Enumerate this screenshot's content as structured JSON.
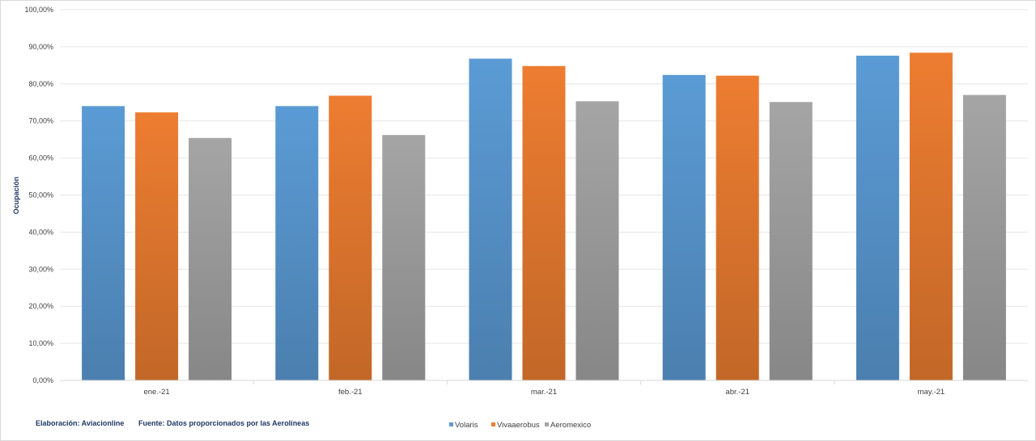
{
  "chart_data": {
    "type": "bar",
    "categories": [
      "ene.-21",
      "feb.-21",
      "mar.-21",
      "abr.-21",
      "may.-21"
    ],
    "series": [
      {
        "name": "Volaris",
        "color": "#5b9bd5",
        "values": [
          74.0,
          74.0,
          86.8,
          82.4,
          87.6
        ]
      },
      {
        "name": "Vivaaerobus",
        "color": "#ed7d31",
        "values": [
          72.3,
          76.8,
          84.8,
          82.2,
          88.4
        ]
      },
      {
        "name": "Aeromexico",
        "color": "#a5a5a5",
        "values": [
          65.4,
          66.2,
          75.3,
          75.1,
          77.0
        ]
      }
    ],
    "ylabel": "Ocupación",
    "ylim": [
      0,
      100
    ],
    "yticks": [
      "0,00%",
      "10,00%",
      "20,00%",
      "30,00%",
      "40,00%",
      "50,00%",
      "60,00%",
      "70,00%",
      "80,00%",
      "90,00%",
      "100,00%"
    ],
    "grid": true,
    "legend_position": "bottom-center"
  },
  "footer": {
    "elaboracion": "Elaboración: Aviacionline",
    "fuente": "Fuente: Datos proporcionados por las Aerolíneas"
  }
}
